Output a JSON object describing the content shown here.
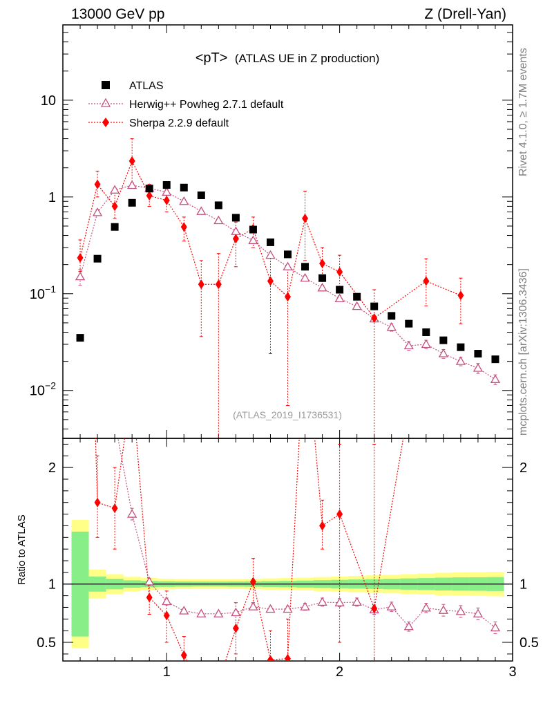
{
  "header": {
    "left": "13000 GeV pp",
    "right": "Z (Drell-Yan)",
    "side_top": "Rivet 4.1.0, ≥ 1.7M events",
    "side_bottom": "mcplots.cern.ch [arXiv:1306.3436]",
    "analysis": "(ATLAS_2019_I1736531)"
  },
  "chart_data": {
    "type": "scatter",
    "title_main": "<pT>",
    "title_sub": "(ATLAS UE in Z production)",
    "x_range": [
      0.4,
      3.0
    ],
    "x_ticks": [
      {
        "v": 1,
        "label": "1"
      },
      {
        "v": 2,
        "label": "2"
      },
      {
        "v": 3,
        "label": "3"
      }
    ],
    "main": {
      "yscale": "log",
      "y_range": [
        0.0032,
        60
      ],
      "y_ticks": [
        {
          "v": 0.01,
          "base": "10",
          "exp": "−2"
        },
        {
          "v": 0.1,
          "base": "10",
          "exp": "−1"
        },
        {
          "v": 1,
          "base": "1",
          "exp": ""
        },
        {
          "v": 10,
          "base": "10",
          "exp": ""
        }
      ]
    },
    "ratio": {
      "ylabel": "Ratio to ATLAS",
      "y_range": [
        0.34,
        2.25
      ],
      "y_ticks": [
        {
          "v": 0.5,
          "label": "0.5"
        },
        {
          "v": 1,
          "label": "1"
        },
        {
          "v": 2,
          "label": "2"
        }
      ]
    },
    "legend": [
      "ATLAS",
      "Herwig++ Powheg 2.7.1 default",
      "Sherpa 2.2.9 default"
    ],
    "series": [
      {
        "name": "ATLAS",
        "color": "#000000",
        "x": [
          0.5,
          0.6,
          0.7,
          0.8,
          0.9,
          1.0,
          1.1,
          1.2,
          1.3,
          1.4,
          1.5,
          1.6,
          1.7,
          1.8,
          1.9,
          2.0,
          2.1,
          2.2,
          2.3,
          2.4,
          2.5,
          2.6,
          2.7,
          2.8,
          2.9
        ],
        "y": [
          0.035,
          0.23,
          0.49,
          0.87,
          1.22,
          1.33,
          1.25,
          1.04,
          0.82,
          0.61,
          0.46,
          0.34,
          0.255,
          0.19,
          0.145,
          0.11,
          0.093,
          0.074,
          0.059,
          0.049,
          0.04,
          0.033,
          0.028,
          0.024,
          0.021
        ]
      },
      {
        "name": "Herwig++ Powheg 2.7.1 default",
        "color": "#c3507e",
        "x": [
          0.5,
          0.6,
          0.7,
          0.8,
          0.9,
          1.0,
          1.1,
          1.2,
          1.3,
          1.4,
          1.5,
          1.6,
          1.7,
          1.8,
          1.9,
          2.0,
          2.1,
          2.2,
          2.3,
          2.4,
          2.5,
          2.6,
          2.7,
          2.8,
          2.9
        ],
        "y": [
          0.15,
          0.69,
          1.18,
          1.32,
          1.23,
          1.12,
          0.9,
          0.71,
          0.57,
          0.44,
          0.355,
          0.25,
          0.19,
          0.145,
          0.115,
          0.089,
          0.074,
          0.055,
          0.045,
          0.029,
          0.03,
          0.024,
          0.02,
          0.017,
          0.013
        ],
        "err": [
          0.028,
          0.05,
          0.06,
          0.06,
          0.05,
          0.045,
          0.04,
          0.03,
          0.025,
          0.02,
          0.018,
          0.013,
          0.01,
          0.008,
          0.007,
          0.006,
          0.005,
          0.004,
          0.004,
          0.003,
          0.003,
          0.0025,
          0.002,
          0.002,
          0.0015
        ],
        "ratio": [
          4.3,
          3.0,
          2.4,
          1.6,
          1.02,
          0.85,
          0.77,
          0.745,
          0.745,
          0.755,
          0.805,
          0.785,
          0.785,
          0.805,
          0.845,
          0.84,
          0.845,
          0.78,
          0.805,
          0.635,
          0.795,
          0.775,
          0.765,
          0.745,
          0.625
        ],
        "ratio_err": [
          0.1,
          0.1,
          0.06,
          0.05,
          0.03,
          0.03,
          0.02,
          0.02,
          0.02,
          0.02,
          0.025,
          0.025,
          0.025,
          0.03,
          0.035,
          0.035,
          0.035,
          0.04,
          0.04,
          0.04,
          0.04,
          0.05,
          0.05,
          0.05,
          0.05
        ]
      },
      {
        "name": "Sherpa 2.2.9 default",
        "color": "#ff0000",
        "x": [
          0.5,
          0.6,
          0.7,
          0.8,
          0.9,
          1.0,
          1.1,
          1.2,
          1.3,
          1.4,
          1.5,
          1.6,
          1.7,
          1.8,
          1.9,
          2.0,
          2.2,
          2.5,
          2.7
        ],
        "y": [
          0.235,
          1.35,
          0.8,
          2.35,
          1.03,
          0.92,
          0.49,
          0.125,
          0.125,
          0.37,
          0.47,
          0.135,
          0.093,
          0.6,
          0.205,
          0.168,
          0.056,
          0.135,
          0.096
        ],
        "ylo": [
          0.17,
          1.0,
          0.6,
          1.4,
          0.8,
          0.7,
          0.35,
          0.036,
          0.0001,
          0.19,
          0.3,
          0.024,
          0.007,
          0.22,
          0.12,
          0.09,
          0.0001,
          0.075,
          0.049
        ],
        "yhi": [
          0.36,
          1.85,
          1.2,
          4.0,
          1.35,
          1.2,
          0.62,
          0.22,
          0.26,
          0.55,
          0.62,
          0.25,
          0.18,
          1.15,
          0.3,
          0.25,
          0.11,
          0.23,
          0.145
        ],
        "ratio": [
          6.5,
          1.7,
          1.65,
          2.7,
          0.885,
          0.73,
          0.39,
          0.125,
          0.15,
          0.62,
          1.02,
          0.35,
          0.36,
          3.2,
          1.5,
          1.6,
          0.79,
          3.4,
          3.4
        ],
        "ratio_lo": [
          5.0,
          1.4,
          1.3,
          2.3,
          0.74,
          0.5,
          0.2,
          0.05,
          0.05,
          0.4,
          0.84,
          0.15,
          0.05,
          2.6,
          1.3,
          0.5,
          0.3,
          3.0,
          3.0
        ],
        "ratio_hi": [
          8.0,
          2.1,
          2.0,
          3.2,
          1.02,
          0.94,
          0.55,
          0.2,
          0.3,
          0.84,
          1.22,
          0.6,
          0.7,
          3.8,
          1.72,
          2.2,
          2.2,
          3.8,
          3.8
        ]
      }
    ],
    "bands": {
      "x_edges": [
        0.45,
        0.55,
        0.65,
        0.75,
        0.85,
        0.95,
        1.05,
        1.15,
        1.25,
        1.35,
        1.45,
        1.55,
        1.65,
        1.75,
        1.85,
        1.95,
        2.05,
        2.15,
        2.25,
        2.35,
        2.45,
        2.55,
        2.65,
        2.75,
        2.85,
        2.95
      ],
      "yellow": [
        0.55,
        0.125,
        0.085,
        0.062,
        0.052,
        0.046,
        0.043,
        0.042,
        0.042,
        0.043,
        0.045,
        0.048,
        0.051,
        0.055,
        0.06,
        0.065,
        0.07,
        0.075,
        0.08,
        0.085,
        0.09,
        0.097,
        0.1,
        0.102,
        0.105
      ],
      "green": [
        0.45,
        0.065,
        0.045,
        0.032,
        0.027,
        0.024,
        0.022,
        0.021,
        0.021,
        0.022,
        0.023,
        0.025,
        0.027,
        0.03,
        0.033,
        0.036,
        0.039,
        0.042,
        0.045,
        0.048,
        0.051,
        0.055,
        0.057,
        0.058,
        0.06
      ],
      "yellow_color": "#ffff88",
      "green_color": "#88ee88"
    }
  }
}
